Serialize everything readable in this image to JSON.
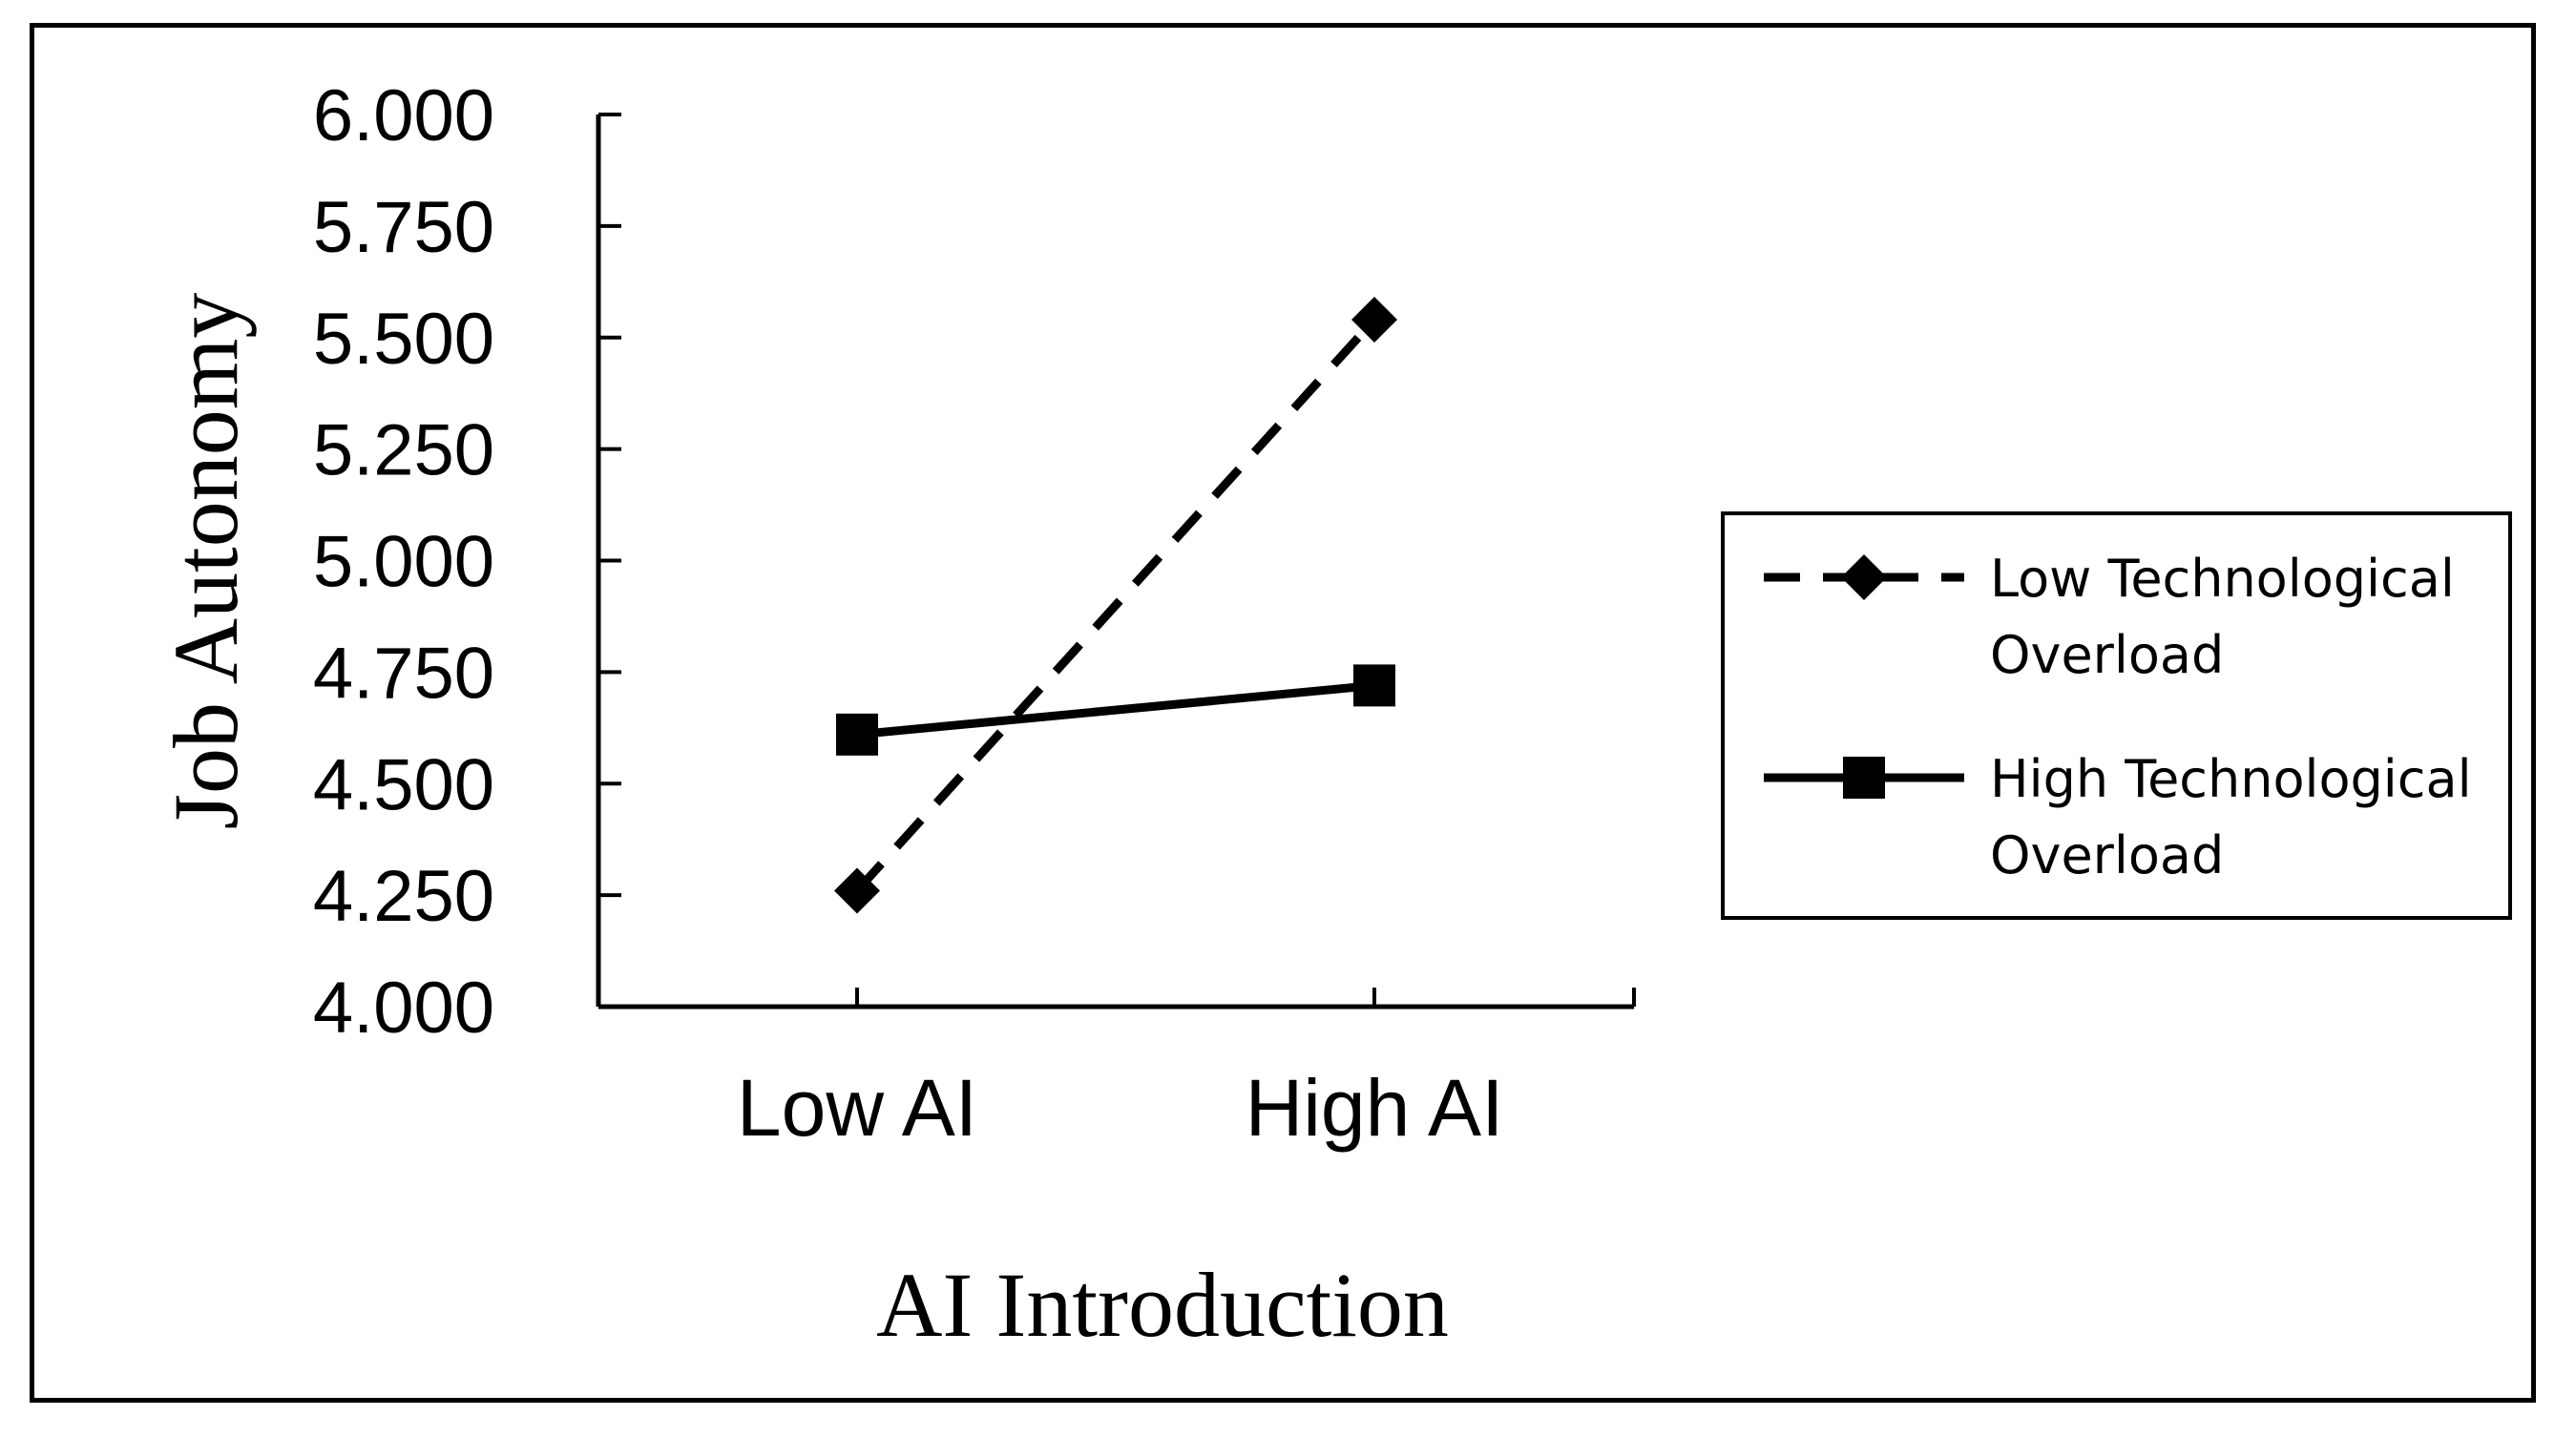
{
  "chart_data": {
    "type": "line",
    "categories": [
      "Low AI",
      "High AI"
    ],
    "xlabel": "AI Introduction",
    "ylabel": "Job Autonomy",
    "ylim": [
      4.0,
      6.0
    ],
    "yticks": [
      "4.000",
      "4.250",
      "4.500",
      "4.750",
      "5.000",
      "5.250",
      "5.500",
      "5.750",
      "6.000"
    ],
    "grid": false,
    "legend_position": "right",
    "series": [
      {
        "name_lines": [
          "Low Technological",
          "Overload"
        ],
        "values": [
          4.26,
          5.54
        ],
        "line_style": "dashed",
        "marker": "diamond",
        "color": "#000000"
      },
      {
        "name_lines": [
          "High Technological",
          "Overload"
        ],
        "values": [
          4.61,
          4.72
        ],
        "line_style": "solid",
        "marker": "square",
        "color": "#000000"
      }
    ]
  }
}
